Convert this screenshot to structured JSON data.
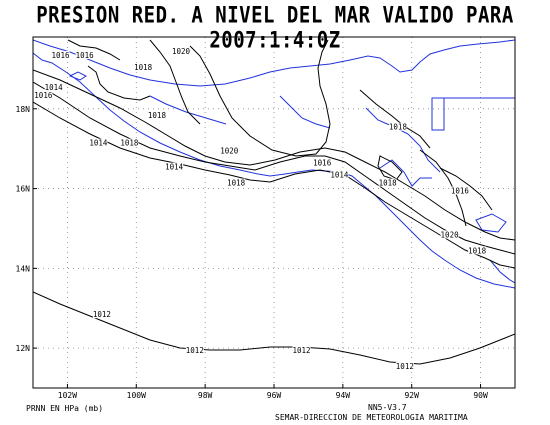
{
  "title": "PRESION RED. A NIVEL DEL MAR VALIDO PARA 2007:1:4:0Z",
  "footer": {
    "unit_label": "PRNN EN HPa (mb)",
    "model_label": "NN5-V3.7",
    "source_label": "SEMAR-DIRECCION DE METEOROLOGIA MARITIMA"
  },
  "axes": {
    "x_ticks": [
      "102W",
      "100W",
      "98W",
      "96W",
      "94W",
      "92W",
      "90W"
    ],
    "y_ticks": [
      "18N",
      "16N",
      "14N",
      "12N"
    ],
    "lon_range": [
      -103.0,
      -89.0
    ],
    "lat_range": [
      11.0,
      19.8
    ],
    "grid": "dotted"
  },
  "isobar_labels": [
    {
      "text": "1016",
      "lon": -102.2,
      "lat": 19.3
    },
    {
      "text": "1016",
      "lon": -101.5,
      "lat": 19.3
    },
    {
      "text": "1014",
      "lon": -102.4,
      "lat": 18.5
    },
    {
      "text": "1016",
      "lon": -102.7,
      "lat": 18.3
    },
    {
      "text": "1018",
      "lon": -99.8,
      "lat": 19.0
    },
    {
      "text": "1020",
      "lon": -98.7,
      "lat": 19.4
    },
    {
      "text": "1018",
      "lon": -99.4,
      "lat": 17.8
    },
    {
      "text": "1014",
      "lon": -101.1,
      "lat": 17.1
    },
    {
      "text": "1018",
      "lon": -100.2,
      "lat": 17.1
    },
    {
      "text": "1020",
      "lon": -97.3,
      "lat": 16.9
    },
    {
      "text": "1014",
      "lon": -98.9,
      "lat": 16.5
    },
    {
      "text": "1016",
      "lon": -94.6,
      "lat": 16.6
    },
    {
      "text": "1018",
      "lon": -97.1,
      "lat": 16.1
    },
    {
      "text": "1014",
      "lon": -94.1,
      "lat": 16.3
    },
    {
      "text": "1018",
      "lon": -92.4,
      "lat": 17.5
    },
    {
      "text": "1018",
      "lon": -92.7,
      "lat": 16.1
    },
    {
      "text": "1016",
      "lon": -90.6,
      "lat": 15.9
    },
    {
      "text": "1020",
      "lon": -90.9,
      "lat": 14.8
    },
    {
      "text": "1018",
      "lon": -90.1,
      "lat": 14.4
    },
    {
      "text": "1012",
      "lon": -101.0,
      "lat": 12.8
    },
    {
      "text": "1012",
      "lon": -98.3,
      "lat": 11.9
    },
    {
      "text": "1012",
      "lon": -95.2,
      "lat": 11.9
    },
    {
      "text": "1012",
      "lon": -92.2,
      "lat": 11.5
    }
  ],
  "colors": {
    "isobar": "#000000",
    "coastline": "#2233dd",
    "grid": "#888888",
    "frame": "#000000"
  }
}
